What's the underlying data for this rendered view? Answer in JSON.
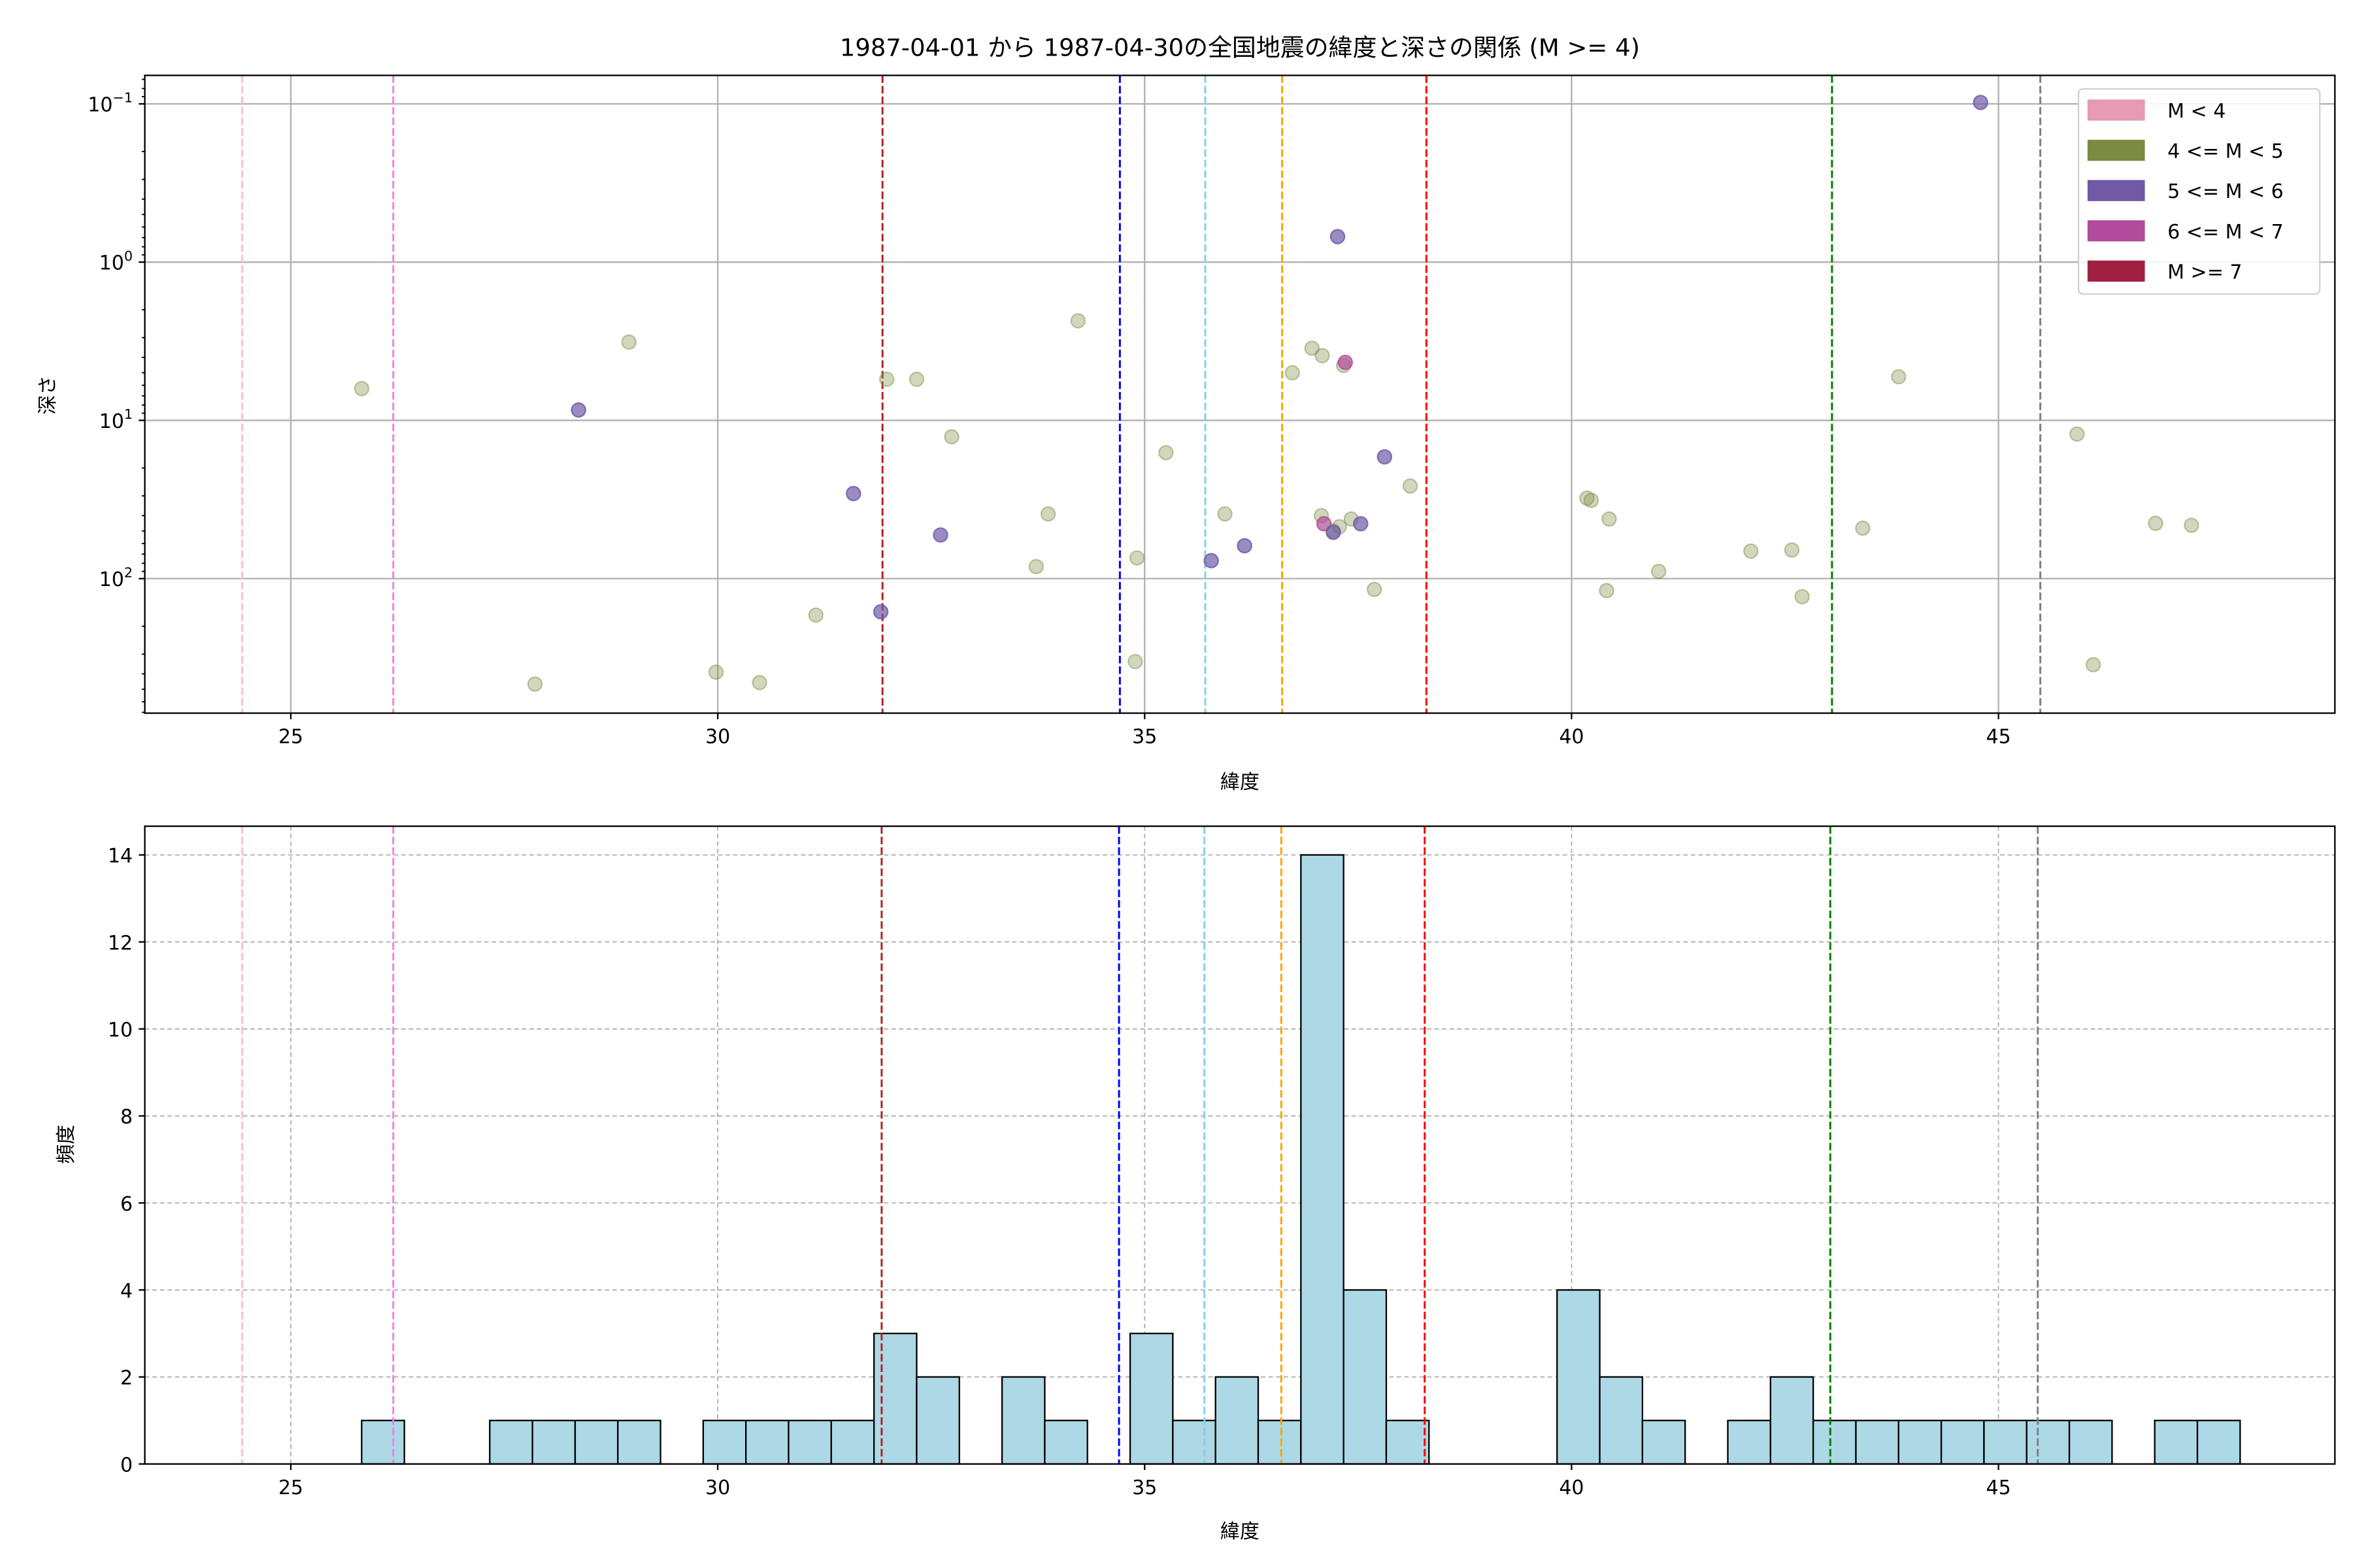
{
  "chart_data": [
    {
      "type": "scatter",
      "title": "1987-04-01 から 1987-04-30の全国地震の緯度と深さの関係 (M >= 4)",
      "xlabel": "緯度",
      "ylabel": "深さ",
      "xlim": [
        23.29,
        48.94
      ],
      "ylim_log10": [
        -1.18,
        2.85
      ],
      "yscale": "log",
      "y_inverted": true,
      "grid": true,
      "xticks": [
        25,
        30,
        35,
        40,
        45
      ],
      "xtick_labels": [
        "25",
        "30",
        "35",
        "40",
        "45"
      ],
      "yticks_log10": [
        -1,
        0,
        1,
        2
      ],
      "ytick_labels": [
        {
          "base": "10",
          "exp": "−1"
        },
        {
          "base": "10",
          "exp": "0"
        },
        {
          "base": "10",
          "exp": "1"
        },
        {
          "base": "10",
          "exp": "2"
        }
      ],
      "legend": {
        "placement": "top-right",
        "entries": [
          {
            "label": "M < 4",
            "color": "#e69ab4"
          },
          {
            "label": "4 <= M < 5",
            "color": "#7b8c42"
          },
          {
            "label": "5 <= M < 6",
            "color": "#6f5aa6"
          },
          {
            "label": "6 <= M < 7",
            "color": "#b24b9a"
          },
          {
            "label": "M >= 7",
            "color": "#a11f42"
          }
        ]
      },
      "points": [
        {
          "lat": 25.83,
          "depth": 6.3,
          "cls": 1
        },
        {
          "lat": 28.37,
          "depth": 8.6,
          "cls": 2
        },
        {
          "lat": 28.96,
          "depth": 3.2,
          "cls": 1
        },
        {
          "lat": 27.86,
          "depth": 464,
          "cls": 1
        },
        {
          "lat": 29.98,
          "depth": 390,
          "cls": 1
        },
        {
          "lat": 30.49,
          "depth": 454,
          "cls": 1
        },
        {
          "lat": 31.15,
          "depth": 170,
          "cls": 1
        },
        {
          "lat": 31.59,
          "depth": 29,
          "cls": 2
        },
        {
          "lat": 31.91,
          "depth": 162,
          "cls": 2
        },
        {
          "lat": 31.98,
          "depth": 5.5,
          "cls": 1
        },
        {
          "lat": 32.33,
          "depth": 5.5,
          "cls": 1
        },
        {
          "lat": 32.61,
          "depth": 53,
          "cls": 2
        },
        {
          "lat": 32.74,
          "depth": 12.7,
          "cls": 1
        },
        {
          "lat": 33.73,
          "depth": 84,
          "cls": 1
        },
        {
          "lat": 33.87,
          "depth": 39,
          "cls": 1
        },
        {
          "lat": 34.22,
          "depth": 2.35,
          "cls": 1
        },
        {
          "lat": 34.91,
          "depth": 74,
          "cls": 1
        },
        {
          "lat": 34.89,
          "depth": 334,
          "cls": 1
        },
        {
          "lat": 35.25,
          "depth": 16,
          "cls": 1
        },
        {
          "lat": 35.78,
          "depth": 77,
          "cls": 2
        },
        {
          "lat": 35.94,
          "depth": 39,
          "cls": 1
        },
        {
          "lat": 36.17,
          "depth": 62,
          "cls": 2
        },
        {
          "lat": 36.73,
          "depth": 5.0,
          "cls": 1
        },
        {
          "lat": 36.96,
          "depth": 3.5,
          "cls": 1
        },
        {
          "lat": 37.08,
          "depth": 3.9,
          "cls": 1
        },
        {
          "lat": 37.26,
          "depth": 0.69,
          "cls": 2
        },
        {
          "lat": 37.33,
          "depth": 4.5,
          "cls": 1
        },
        {
          "lat": 37.35,
          "depth": 4.3,
          "cls": 3
        },
        {
          "lat": 37.07,
          "depth": 40,
          "cls": 1
        },
        {
          "lat": 37.1,
          "depth": 45,
          "cls": 3
        },
        {
          "lat": 37.21,
          "depth": 50,
          "cls": 1
        },
        {
          "lat": 37.28,
          "depth": 47,
          "cls": 1
        },
        {
          "lat": 37.21,
          "depth": 51,
          "cls": 2
        },
        {
          "lat": 37.42,
          "depth": 42,
          "cls": 1
        },
        {
          "lat": 37.53,
          "depth": 45,
          "cls": 2
        },
        {
          "lat": 37.81,
          "depth": 17,
          "cls": 2
        },
        {
          "lat": 38.11,
          "depth": 26,
          "cls": 1
        },
        {
          "lat": 37.69,
          "depth": 117,
          "cls": 1
        },
        {
          "lat": 40.18,
          "depth": 31,
          "cls": 1
        },
        {
          "lat": 40.23,
          "depth": 32,
          "cls": 1
        },
        {
          "lat": 40.44,
          "depth": 42,
          "cls": 1
        },
        {
          "lat": 40.41,
          "depth": 119,
          "cls": 1
        },
        {
          "lat": 41.02,
          "depth": 90,
          "cls": 1
        },
        {
          "lat": 42.1,
          "depth": 67,
          "cls": 1
        },
        {
          "lat": 42.58,
          "depth": 66,
          "cls": 1
        },
        {
          "lat": 42.7,
          "depth": 130,
          "cls": 1
        },
        {
          "lat": 43.41,
          "depth": 48,
          "cls": 1
        },
        {
          "lat": 43.83,
          "depth": 5.3,
          "cls": 1
        },
        {
          "lat": 44.79,
          "depth": 0.098,
          "cls": 2
        },
        {
          "lat": 45.92,
          "depth": 12.2,
          "cls": 1
        },
        {
          "lat": 46.11,
          "depth": 350,
          "cls": 1
        },
        {
          "lat": 46.84,
          "depth": 44.7,
          "cls": 1
        },
        {
          "lat": 47.26,
          "depth": 46,
          "cls": 1
        }
      ],
      "reference_lines": [
        {
          "x": 24.43,
          "color": "pink"
        },
        {
          "x": 26.2,
          "color": "violet"
        },
        {
          "x": 31.93,
          "color": "#b22222"
        },
        {
          "x": 34.71,
          "color": "blue"
        },
        {
          "x": 35.71,
          "color": "skyblue"
        },
        {
          "x": 36.61,
          "color": "orange"
        },
        {
          "x": 38.3,
          "color": "red"
        },
        {
          "x": 43.05,
          "color": "green"
        },
        {
          "x": 45.49,
          "color": "gray"
        }
      ]
    },
    {
      "type": "bar",
      "subtype": "histogram",
      "xlabel": "緯度",
      "ylabel": "頻度",
      "xlim": [
        23.29,
        48.94
      ],
      "ylim": [
        0,
        14.66
      ],
      "grid": true,
      "bar_color": "#add8e6",
      "bin_start": 25.83,
      "bin_width": 0.5,
      "counts": [
        1,
        0,
        0,
        1,
        1,
        1,
        1,
        0,
        1,
        1,
        1,
        1,
        3,
        2,
        0,
        2,
        1,
        0,
        3,
        1,
        2,
        1,
        14,
        4,
        1,
        0,
        0,
        0,
        4,
        2,
        1,
        0,
        1,
        2,
        1,
        1,
        1,
        1,
        1,
        1,
        1,
        0,
        1,
        1
      ],
      "xticks": [
        25,
        30,
        35,
        40,
        45
      ],
      "xtick_labels": [
        "25",
        "30",
        "35",
        "40",
        "45"
      ],
      "yticks": [
        0,
        2,
        4,
        6,
        8,
        10,
        12,
        14
      ],
      "ytick_labels": [
        "0",
        "2",
        "4",
        "6",
        "8",
        "10",
        "12",
        "14"
      ],
      "reference_lines": [
        {
          "x": 24.43,
          "color": "pink"
        },
        {
          "x": 26.2,
          "color": "violet"
        },
        {
          "x": 31.92,
          "color": "#b22222"
        },
        {
          "x": 34.7,
          "color": "blue"
        },
        {
          "x": 35.7,
          "color": "skyblue"
        },
        {
          "x": 36.6,
          "color": "orange"
        },
        {
          "x": 38.28,
          "color": "red"
        },
        {
          "x": 43.03,
          "color": "green"
        },
        {
          "x": 45.46,
          "color": "gray"
        }
      ]
    }
  ]
}
